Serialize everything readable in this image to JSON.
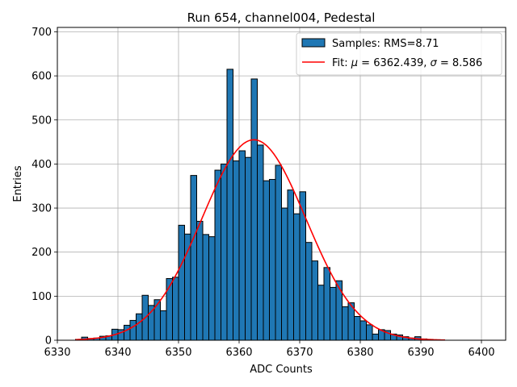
{
  "chart_data": {
    "type": "histogram",
    "title": "Run 654, channel004, Pedestal",
    "xlabel": "ADC Counts",
    "ylabel": "Entries",
    "xlim": [
      6330,
      6404
    ],
    "ylim": [
      0,
      710
    ],
    "xticks": [
      6330,
      6340,
      6350,
      6360,
      6370,
      6380,
      6390,
      6400
    ],
    "yticks": [
      0,
      100,
      200,
      300,
      400,
      500,
      600,
      700
    ],
    "grid": true,
    "legend_position": "top-right",
    "legend": {
      "samples_label": "Samples: RMS=8.71",
      "fit_label_prefix": "Fit: ",
      "fit_mu_symbol": "μ",
      "fit_mu_value": " = 6362.439, ",
      "fit_sigma_symbol": "σ",
      "fit_sigma_value": " = 8.586"
    },
    "bar_color": "#1f77b4",
    "bar_edge_color": "#000000",
    "fit_color": "#ff0000",
    "bin_start": 6333,
    "bin_width": 1,
    "counts": [
      2,
      7,
      4,
      5,
      9,
      10,
      25,
      24,
      34,
      45,
      60,
      102,
      79,
      92,
      67,
      140,
      143,
      261,
      241,
      374,
      270,
      240,
      235,
      386,
      400,
      615,
      407,
      430,
      415,
      593,
      443,
      362,
      365,
      397,
      300,
      341,
      287,
      337,
      222,
      180,
      125,
      165,
      120,
      135,
      76,
      85,
      54,
      44,
      35,
      14,
      24,
      22,
      14,
      12,
      8,
      5,
      8,
      3,
      2,
      1
    ],
    "fit": {
      "mu": 6362.439,
      "sigma": 8.586,
      "peak": 455,
      "x_range": [
        6333,
        6394
      ]
    }
  }
}
